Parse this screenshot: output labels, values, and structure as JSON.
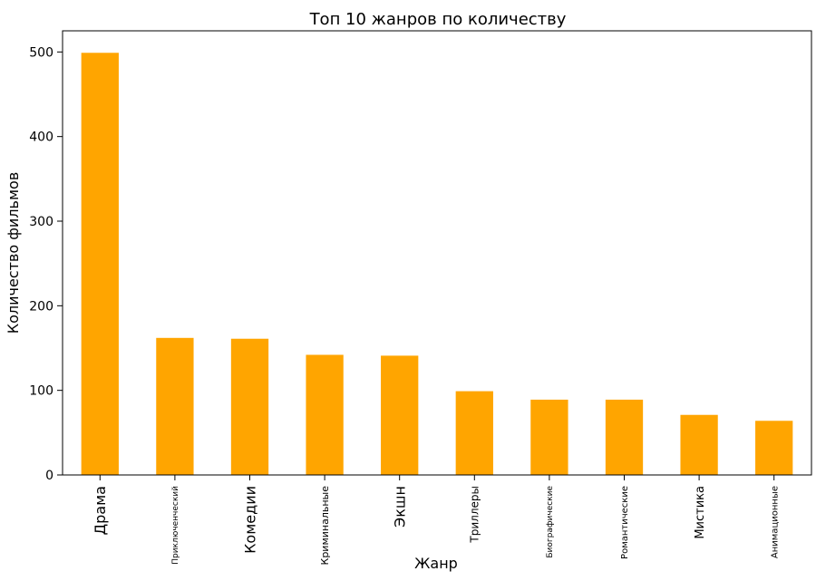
{
  "chart_data": {
    "type": "bar",
    "title": "Топ 10 жанров по количеству",
    "xlabel": "Жанр",
    "ylabel": "Количество фильмов",
    "categories": [
      "Драма",
      "Приключенческий",
      "Комедии",
      "Криминальные",
      "Экшн",
      "Триллеры",
      "Биографические",
      "Романтические",
      "Мистика",
      "Анимационные"
    ],
    "values": [
      499,
      162,
      161,
      142,
      141,
      99,
      89,
      89,
      71,
      64
    ],
    "ylim": [
      0,
      525
    ],
    "yticks": [
      0,
      100,
      200,
      300,
      400,
      500
    ],
    "grid": false,
    "bar_color": "#FFA500",
    "label_sizes": [
      16,
      9,
      16,
      11,
      16,
      12,
      9,
      10,
      13,
      10
    ]
  }
}
